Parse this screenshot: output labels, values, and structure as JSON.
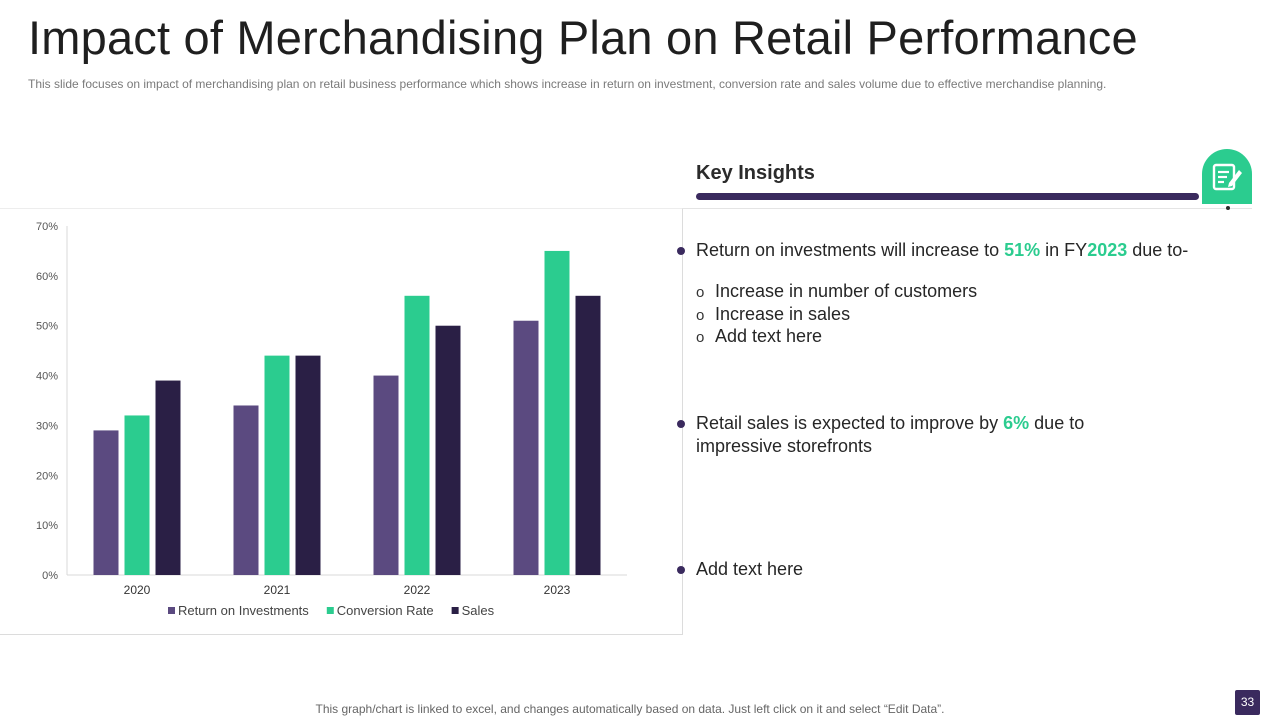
{
  "slide": {
    "title": "Impact of Merchandising Plan on Retail Performance",
    "subtitle": "This slide focuses on impact of merchandising plan on retail business performance  which shows increase in return on investment,  conversion rate and sales volume  due to effective  merchandise  planning.",
    "footer_note": "This graph/chart is linked to excel,  and changes automatically based on data. Just left click on it and select “Edit Data”.",
    "page_number": "33"
  },
  "insights": {
    "heading": "Key Insights",
    "icon": "notepad-pen-icon",
    "bullet1": {
      "pre": "Return on investments will increase to ",
      "pct": "51%",
      "mid": " in FY",
      "year": "2023",
      "post": " due to-"
    },
    "sub_marker": "o",
    "sub_items": [
      "Increase in number of customers",
      "Increase in sales",
      "Add text here"
    ],
    "bullet2": {
      "pre": "Retail sales is expected to improve by ",
      "pct": "6%",
      "post": " due to",
      "line2": "impressive storefronts"
    },
    "bullet3": "Add text here"
  },
  "colors": {
    "roi": "#5b4a80",
    "conversion": "#2bcc8f",
    "sales": "#2a1f45",
    "accent_dark": "#3a2a5e"
  },
  "chart_data": {
    "type": "bar",
    "title": "",
    "xlabel": "",
    "ylabel": "",
    "categories": [
      "2020",
      "2021",
      "2022",
      "2023"
    ],
    "series": [
      {
        "name": "Return on Investments",
        "values": [
          29,
          34,
          40,
          51
        ]
      },
      {
        "name": "Conversion Rate",
        "values": [
          32,
          44,
          56,
          65
        ]
      },
      {
        "name": "Sales",
        "values": [
          39,
          44,
          50,
          56
        ]
      }
    ],
    "ylim": [
      0,
      70
    ],
    "yticks": [
      "0%",
      "10%",
      "20%",
      "30%",
      "40%",
      "50%",
      "60%",
      "70%"
    ],
    "legend_position": "bottom",
    "grid": false
  }
}
